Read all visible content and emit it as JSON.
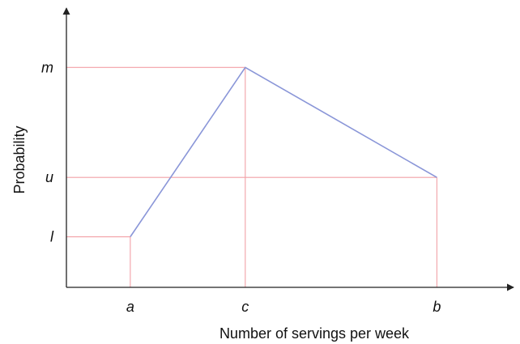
{
  "chart_data": {
    "type": "line",
    "title": "",
    "xlabel": "Number of servings per week",
    "ylabel": "Probability",
    "x_ticks": [
      {
        "label": "a",
        "value": 1.0
      },
      {
        "label": "c",
        "value": 2.8
      },
      {
        "label": "b",
        "value": 5.8
      }
    ],
    "y_ticks": [
      {
        "label": "l",
        "value": 0.23
      },
      {
        "label": "u",
        "value": 0.5
      },
      {
        "label": "m",
        "value": 1.0
      }
    ],
    "xlim": [
      0,
      7
    ],
    "ylim": [
      0,
      1.27
    ],
    "series": [
      {
        "points": [
          {
            "x": 1.0,
            "y": 0.23
          },
          {
            "x": 2.8,
            "y": 1.0
          },
          {
            "x": 5.8,
            "y": 0.5
          }
        ]
      }
    ],
    "grid": false,
    "colors": {
      "series": "#8a96d8",
      "guides": "#f2a0a6",
      "axes": "#222222"
    }
  }
}
